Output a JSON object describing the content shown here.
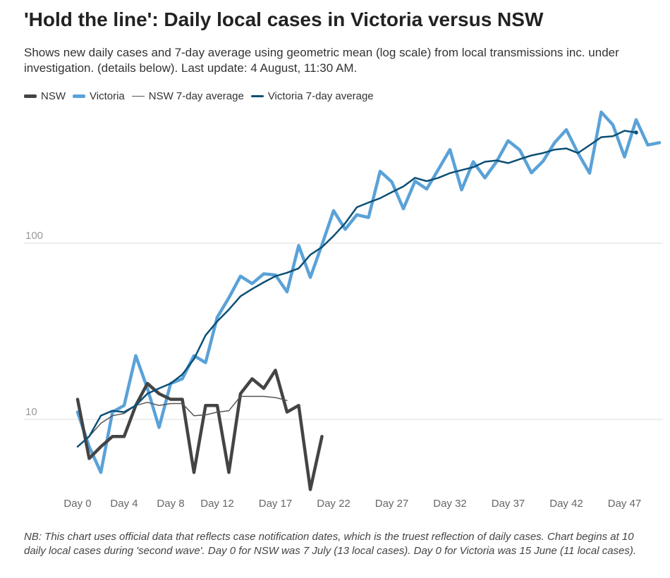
{
  "title": "'Hold the line': Daily local cases in Victoria versus NSW",
  "subtitle": "Shows new daily cases and 7-day average using geometric mean (log scale) from local transmissions inc. under investigation. (details below). Last update: 4 August, 11:30 AM.",
  "footnote": "NB: This chart uses official data that reflects case notification dates, which is the truest reflection of daily cases. Chart begins at 10 daily local cases during 'second wave'. Day 0 for NSW was 7 July (13 local cases). Day 0 for Victoria was 15 June (11 local cases).",
  "colors": {
    "nsw": "#444444",
    "victoria": "#5aa2d8",
    "nsw_avg": "#555555",
    "victoria_avg": "#0b4f75",
    "grid": "#dddddd",
    "axis_text": "#999999"
  },
  "legend": [
    {
      "label": "NSW",
      "key": "nsw"
    },
    {
      "label": "Victoria",
      "key": "victoria"
    },
    {
      "label": "NSW 7-day average",
      "key": "nsw_avg"
    },
    {
      "label": "Victoria 7-day average",
      "key": "victoria_avg"
    }
  ],
  "chart_data": {
    "type": "line",
    "title": "'Hold the line': Daily local cases in Victoria versus NSW",
    "x_tick_labels": [
      "Day 0",
      "Day 4",
      "Day 8",
      "Day 12",
      "Day 17",
      "Day 22",
      "Day 27",
      "Day 32",
      "Day 37",
      "Day 42",
      "Day 47"
    ],
    "x_ticks": [
      0,
      4,
      8,
      12,
      17,
      22,
      27,
      32,
      37,
      42,
      47
    ],
    "x_range": [
      -1,
      50
    ],
    "y_scale": "log",
    "y_range": [
      3.8,
      550
    ],
    "y_ticks": [
      10,
      100
    ],
    "y_tick_labels": [
      "10",
      "100"
    ],
    "grid": true,
    "legend_position": "top-left",
    "series": [
      {
        "name": "NSW",
        "key": "nsw",
        "width": 4.5,
        "x": [
          0,
          1,
          2,
          3,
          4,
          5,
          6,
          7,
          8,
          9,
          10,
          11,
          12,
          13,
          14,
          15,
          16,
          17,
          18,
          19,
          20,
          21
        ],
        "y": [
          13,
          6,
          7,
          8,
          8,
          12,
          16,
          14,
          13,
          13,
          5,
          12,
          12,
          5,
          14,
          17,
          15,
          19,
          11,
          12,
          4,
          8
        ]
      },
      {
        "name": "Victoria",
        "key": "victoria",
        "width": 4.5,
        "x": [
          0,
          1,
          2,
          3,
          4,
          5,
          6,
          7,
          8,
          9,
          10,
          11,
          12,
          13,
          14,
          15,
          16,
          17,
          18,
          19,
          20,
          21,
          22,
          23,
          24,
          25,
          26,
          27,
          28,
          29,
          30,
          31,
          32,
          33,
          34,
          35,
          36,
          37,
          38,
          39,
          40,
          41,
          42,
          43,
          44,
          45,
          46,
          47,
          48,
          49,
          50
        ],
        "y": [
          11,
          7,
          5,
          11,
          12,
          23,
          15,
          9,
          16,
          17,
          23,
          21,
          38,
          49,
          65,
          59,
          67,
          66,
          53,
          97,
          64,
          98,
          153,
          120,
          145,
          140,
          256,
          223,
          157,
          225,
          203,
          262,
          340,
          201,
          290,
          235,
          290,
          382,
          338,
          251,
          292,
          373,
          441,
          325,
          250,
          555,
          470,
          309,
          502,
          361,
          372
        ]
      },
      {
        "name": "NSW 7-day average",
        "key": "nsw_avg",
        "width": 1.5,
        "x": [
          0,
          1,
          2,
          3,
          4,
          5,
          6,
          7,
          8,
          9,
          10,
          11,
          12,
          13,
          14,
          15,
          16,
          17,
          18
        ],
        "y": [
          7,
          8,
          9.5,
          10.5,
          10.8,
          12,
          12.5,
          12,
          12.3,
          12.3,
          10.5,
          10.6,
          11,
          11.2,
          13.5,
          13.5,
          13.5,
          13.3,
          12.8
        ]
      },
      {
        "name": "Victoria 7-day average",
        "key": "victoria_avg",
        "width": 2.5,
        "x": [
          0,
          1,
          2,
          3,
          4,
          5,
          6,
          7,
          8,
          9,
          10,
          11,
          12,
          13,
          14,
          15,
          16,
          17,
          18,
          19,
          20,
          21,
          22,
          23,
          24,
          25,
          26,
          27,
          28,
          29,
          30,
          31,
          32,
          33,
          34,
          35,
          36,
          37,
          38,
          39,
          40,
          41,
          42,
          43,
          44,
          45,
          46,
          47,
          48
        ],
        "y": [
          7,
          8,
          10.5,
          11.2,
          11,
          12,
          14,
          15,
          16,
          18,
          22,
          30,
          36,
          42,
          50,
          55,
          60,
          65,
          68,
          72,
          86,
          95,
          110,
          130,
          160,
          170,
          180,
          195,
          210,
          235,
          225,
          235,
          250,
          260,
          270,
          290,
          295,
          285,
          300,
          315,
          325,
          340,
          345,
          325,
          360,
          400,
          405,
          435,
          425
        ]
      }
    ]
  }
}
